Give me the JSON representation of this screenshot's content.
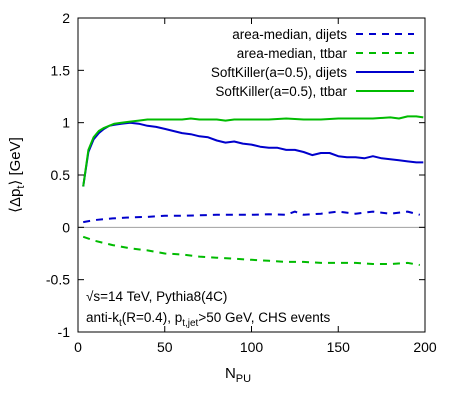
{
  "chart_data": {
    "type": "line",
    "title": "",
    "xlabel": "N",
    "xlabel_sub": "PU",
    "ylabel": "⟨Δp",
    "ylabel_sub": "t",
    "ylabel_rest": "⟩ [GeV]",
    "xlim": [
      0,
      200
    ],
    "ylim": [
      -1,
      2
    ],
    "xticks": [
      "0",
      "50",
      "100",
      "150",
      "200"
    ],
    "yticks": [
      "-1",
      "-0.5",
      "0",
      "0.5",
      "1",
      "1.5",
      "2"
    ],
    "grid": false,
    "legend_position": "top-right",
    "annotations": [
      {
        "text": "√s=14 TeV, Pythia8(4C)"
      },
      {
        "parts": [
          "anti-k",
          "t",
          "(R=0.4), p",
          "t,jet",
          ">50 GeV, CHS events"
        ]
      }
    ],
    "series": [
      {
        "name": "area-median, dijets",
        "color": "#0000cc",
        "dash": "dashed",
        "x": [
          3,
          10,
          20,
          30,
          40,
          50,
          60,
          70,
          80,
          90,
          100,
          110,
          120,
          125,
          130,
          140,
          150,
          160,
          170,
          180,
          190,
          197
        ],
        "y": [
          0.05,
          0.07,
          0.085,
          0.095,
          0.1,
          0.11,
          0.11,
          0.115,
          0.12,
          0.12,
          0.12,
          0.125,
          0.12,
          0.15,
          0.12,
          0.13,
          0.15,
          0.13,
          0.15,
          0.13,
          0.15,
          0.12
        ]
      },
      {
        "name": "area-median, ttbar",
        "color": "#00bb00",
        "dash": "dashed",
        "x": [
          3,
          10,
          20,
          30,
          40,
          50,
          60,
          70,
          80,
          90,
          100,
          110,
          120,
          130,
          140,
          150,
          160,
          170,
          180,
          190,
          197
        ],
        "y": [
          -0.09,
          -0.13,
          -0.17,
          -0.2,
          -0.22,
          -0.25,
          -0.26,
          -0.28,
          -0.29,
          -0.3,
          -0.31,
          -0.32,
          -0.33,
          -0.33,
          -0.34,
          -0.34,
          -0.34,
          -0.35,
          -0.35,
          -0.34,
          -0.36
        ]
      },
      {
        "name": "SoftKiller(a=0.5), dijets",
        "color": "#0000cc",
        "dash": "solid",
        "x": [
          3,
          6,
          9,
          12,
          15,
          18,
          21,
          25,
          30,
          35,
          40,
          45,
          50,
          55,
          60,
          65,
          70,
          75,
          80,
          85,
          90,
          95,
          100,
          105,
          110,
          115,
          120,
          125,
          130,
          135,
          140,
          145,
          150,
          155,
          160,
          165,
          170,
          175,
          180,
          185,
          190,
          195,
          199
        ],
        "y": [
          0.39,
          0.72,
          0.84,
          0.9,
          0.94,
          0.97,
          0.98,
          0.99,
          1.0,
          0.99,
          0.97,
          0.96,
          0.94,
          0.92,
          0.9,
          0.89,
          0.87,
          0.86,
          0.83,
          0.81,
          0.82,
          0.8,
          0.79,
          0.77,
          0.76,
          0.76,
          0.74,
          0.74,
          0.72,
          0.69,
          0.71,
          0.71,
          0.68,
          0.67,
          0.67,
          0.66,
          0.68,
          0.66,
          0.65,
          0.64,
          0.63,
          0.62,
          0.62
        ]
      },
      {
        "name": "SoftKiller(a=0.5), ttbar",
        "color": "#00bb00",
        "dash": "solid",
        "x": [
          3,
          6,
          9,
          12,
          15,
          18,
          21,
          25,
          30,
          35,
          40,
          45,
          50,
          55,
          60,
          65,
          70,
          75,
          80,
          85,
          90,
          95,
          100,
          110,
          120,
          130,
          140,
          150,
          160,
          170,
          180,
          185,
          190,
          195,
          199
        ],
        "y": [
          0.39,
          0.74,
          0.86,
          0.92,
          0.95,
          0.97,
          0.99,
          1.0,
          1.01,
          1.02,
          1.03,
          1.03,
          1.03,
          1.03,
          1.03,
          1.04,
          1.03,
          1.03,
          1.03,
          1.02,
          1.03,
          1.03,
          1.03,
          1.03,
          1.04,
          1.03,
          1.03,
          1.04,
          1.04,
          1.04,
          1.05,
          1.04,
          1.06,
          1.06,
          1.05
        ]
      }
    ]
  }
}
